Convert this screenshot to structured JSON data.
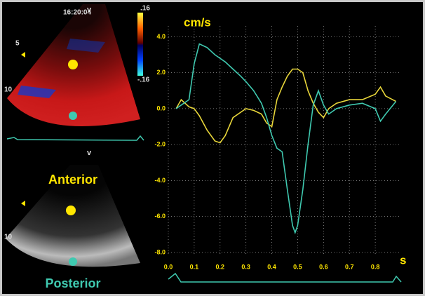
{
  "overlay": {
    "time": "16:20:04",
    "scale_max": ".16",
    "scale_min": "-.16",
    "depth_5": "5",
    "depth_10_top": "10",
    "depth_10_bottom": "10",
    "marker_top": "v",
    "marker_bottom": "v"
  },
  "chart_data": {
    "type": "line",
    "y_label": "cm/s",
    "x_label": "s",
    "x": [
      0.03,
      0.05,
      0.08,
      0.1,
      0.12,
      0.15,
      0.18,
      0.2,
      0.22,
      0.25,
      0.28,
      0.3,
      0.33,
      0.36,
      0.38,
      0.4,
      0.42,
      0.44,
      0.46,
      0.48,
      0.49,
      0.5,
      0.52,
      0.54,
      0.56,
      0.58,
      0.6,
      0.62,
      0.65,
      0.7,
      0.75,
      0.8,
      0.82,
      0.84,
      0.88
    ],
    "series": [
      {
        "name": "Anterior",
        "color": "#e8d63a",
        "values": [
          0,
          0.5,
          0.1,
          0.0,
          -0.4,
          -1.2,
          -1.8,
          -1.9,
          -1.5,
          -0.5,
          -0.2,
          0.0,
          -0.1,
          -0.3,
          -0.8,
          -1.0,
          0.5,
          1.2,
          1.8,
          2.2,
          2.2,
          2.2,
          2.0,
          1.0,
          0.3,
          -0.2,
          -0.5,
          0.0,
          0.3,
          0.5,
          0.5,
          0.8,
          1.2,
          0.7,
          0.4
        ]
      },
      {
        "name": "Posterior",
        "color": "#3fc9b0",
        "values": [
          0,
          0.2,
          0.5,
          2.5,
          3.6,
          3.4,
          3.0,
          2.8,
          2.6,
          2.2,
          1.8,
          1.5,
          1.0,
          0.3,
          -0.5,
          -1.5,
          -2.2,
          -2.4,
          -4.5,
          -6.5,
          -6.9,
          -6.5,
          -4.5,
          -2.0,
          0.2,
          1.0,
          0.2,
          -0.3,
          0.0,
          0.2,
          0.3,
          0.0,
          -0.7,
          -0.3,
          0.4
        ]
      }
    ],
    "xlim": [
      0,
      0.9
    ],
    "ylim": [
      -8.2,
      4.6
    ],
    "xticks": [
      {
        "value": 0,
        "label": "0.0"
      },
      0.1,
      0.2,
      0.3,
      0.4,
      0.5,
      0.6,
      0.7,
      0.8
    ],
    "yticks": [
      {
        "value": 4,
        "label": "4.0"
      },
      {
        "value": 2,
        "label": "2.0"
      },
      {
        "value": 0,
        "label": "0.0"
      },
      {
        "value": -2,
        "label": "-2.0"
      },
      {
        "value": -4,
        "label": "-4.0"
      },
      {
        "value": -6,
        "label": "-6.0"
      },
      {
        "value": -8,
        "label": "-8.0"
      }
    ],
    "grid": true
  }
}
